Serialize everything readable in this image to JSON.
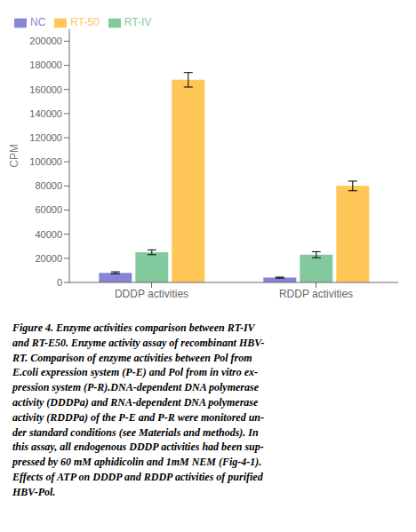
{
  "chart_data": {
    "type": "bar",
    "categories": [
      "DDDP activities",
      "RDDP activities"
    ],
    "series": [
      {
        "name": "NC",
        "color": "#8884d8",
        "values": [
          8000,
          4000
        ],
        "errors": [
          800,
          400
        ]
      },
      {
        "name": "RT-IV",
        "color": "#82ca9d",
        "values": [
          25000,
          23000
        ],
        "errors": [
          2000,
          2500
        ]
      },
      {
        "name": "RT-50",
        "color": "#ffc658",
        "values": [
          168000,
          80000
        ],
        "errors": [
          6000,
          4000
        ]
      }
    ],
    "ylabel": "CPM",
    "ylim": [
      0,
      210000
    ],
    "yticks": [
      0,
      20000,
      40000,
      60000,
      80000,
      100000,
      120000,
      140000,
      160000,
      180000,
      200000
    ],
    "grid": false,
    "legend": "upper left",
    "annotations": [
      "Figure 4.  Enzyme activities comparison between RT-IV\nand RT-E50. Enzyme activity assay of recombinant HBV-\nRT. Comparison of enzyme activities between Pol from\nE.coli expression system (P-E) and Pol from in vitro ex-\npression system (P-R).DNA-dependent DNA polymerase\nactivity (DDDPa) and RNA-dependent DNA polymerase\nactivity (RDDPa) of the P-E and P-R were monitored un-\nder standard conditions (see Materials and methods). In\nthis assay, all endogenous DDDP activities had been sup-\npressed by 60 mM aphidicolin and 1mM NEM (Fig-4-1).\nEffects of ATP on DDDP and RDDP activities of purified\nHBV-Pol."
    ]
  }
}
